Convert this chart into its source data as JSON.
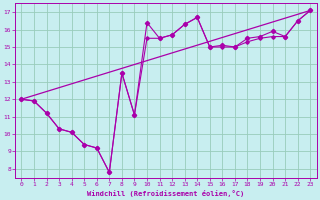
{
  "xlabel": "Windchill (Refroidissement éolien,°C)",
  "xlim": [
    -0.5,
    23.5
  ],
  "ylim": [
    7.5,
    17.5
  ],
  "yticks": [
    8,
    9,
    10,
    11,
    12,
    13,
    14,
    15,
    16,
    17
  ],
  "xticks": [
    0,
    1,
    2,
    3,
    4,
    5,
    6,
    7,
    8,
    9,
    10,
    11,
    12,
    13,
    14,
    15,
    16,
    17,
    18,
    19,
    20,
    21,
    22,
    23
  ],
  "bg_color": "#c8eef0",
  "line_color": "#aa00aa",
  "grid_color": "#99ccbb",
  "line_upper": {
    "x": [
      0,
      1,
      2,
      3,
      4,
      5,
      6,
      7,
      8,
      9,
      10,
      11,
      12,
      13,
      14,
      15,
      16,
      17,
      18,
      19,
      20,
      21,
      22,
      23
    ],
    "y": [
      12.0,
      11.9,
      11.2,
      10.3,
      10.1,
      9.4,
      9.2,
      7.8,
      13.5,
      11.1,
      16.4,
      15.5,
      15.7,
      16.3,
      16.7,
      15.0,
      15.1,
      15.0,
      15.5,
      15.6,
      15.9,
      15.6,
      16.5,
      17.1
    ]
  },
  "line_lower": {
    "x": [
      0,
      1,
      2,
      3,
      4,
      5,
      6,
      7,
      8,
      9,
      10,
      11,
      12,
      13,
      14,
      15,
      16,
      17,
      18,
      19,
      20,
      21,
      22,
      23
    ],
    "y": [
      12.0,
      11.9,
      11.2,
      10.3,
      10.1,
      9.4,
      9.2,
      7.8,
      13.5,
      11.1,
      15.5,
      15.5,
      15.7,
      16.3,
      16.7,
      15.0,
      15.0,
      15.0,
      15.3,
      15.5,
      15.6,
      15.6,
      16.5,
      17.1
    ]
  },
  "line_trend_x": [
    0,
    23
  ],
  "line_trend_y": [
    12.0,
    17.1
  ]
}
